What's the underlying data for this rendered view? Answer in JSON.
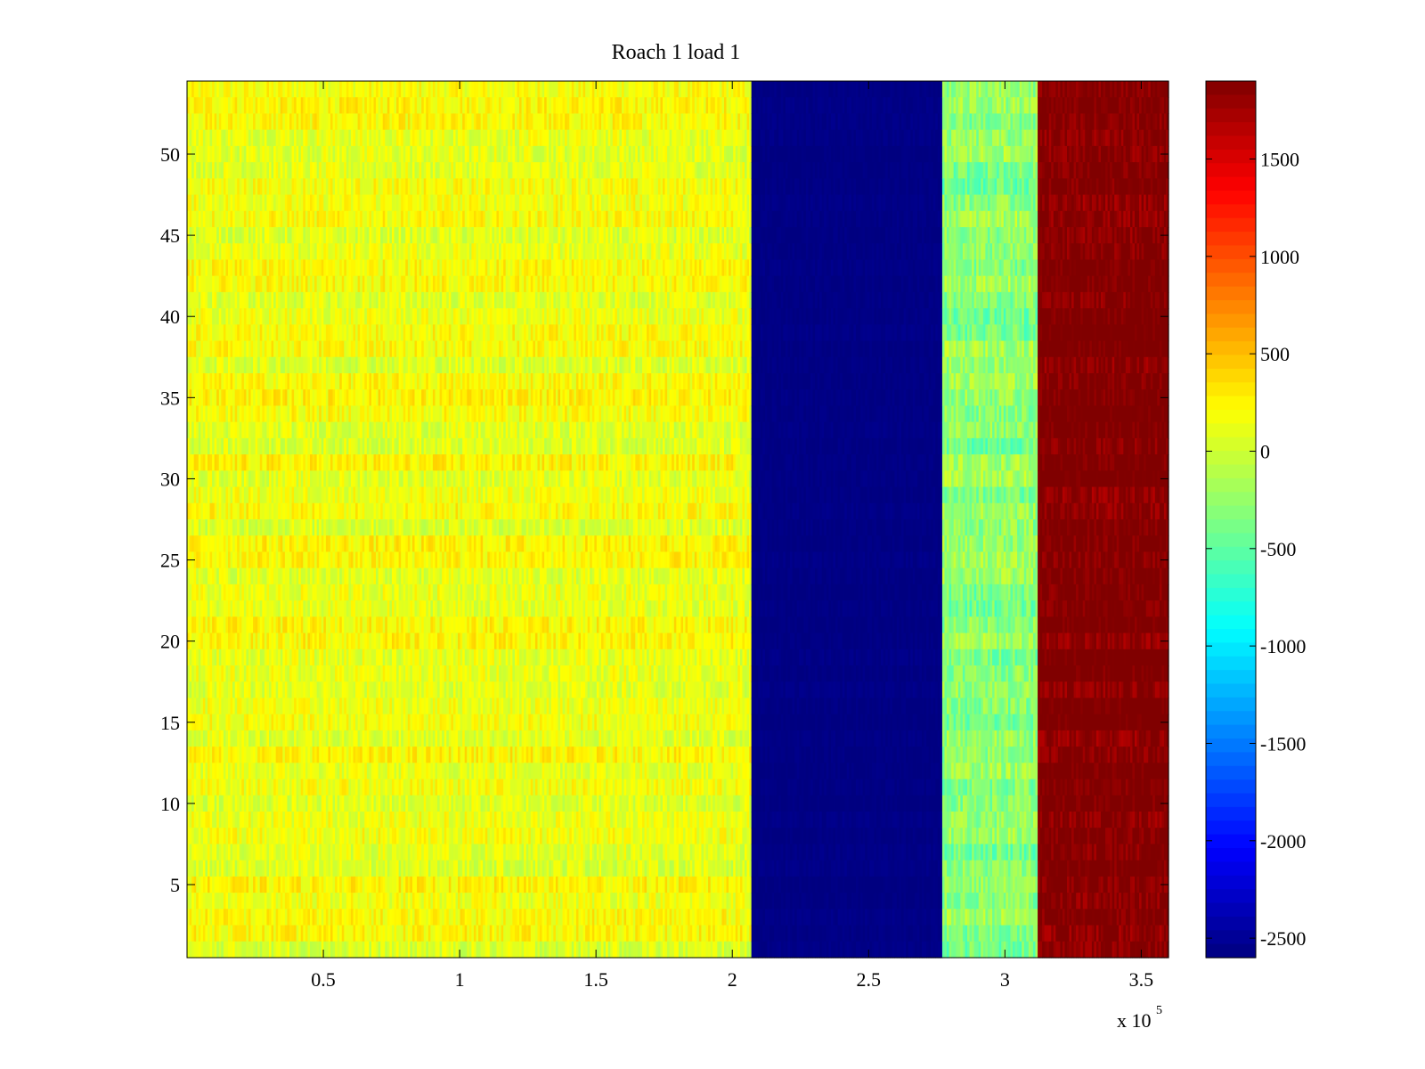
{
  "chart_data": {
    "type": "heatmap",
    "title": "Roach 1 load 1",
    "xlabel": "",
    "ylabel": "",
    "x_multiplier_label": "x 10",
    "x_multiplier_exponent": "5",
    "xlim": [
      0,
      3.6
    ],
    "ylim": [
      0.5,
      54.5
    ],
    "x_ticks": [
      {
        "value": 0.5,
        "label": "0.5"
      },
      {
        "value": 1.0,
        "label": "1"
      },
      {
        "value": 1.5,
        "label": "1.5"
      },
      {
        "value": 2.0,
        "label": "2"
      },
      {
        "value": 2.5,
        "label": "2.5"
      },
      {
        "value": 3.0,
        "label": "3"
      },
      {
        "value": 3.5,
        "label": "3.5"
      }
    ],
    "y_ticks": [
      {
        "value": 5,
        "label": "5"
      },
      {
        "value": 10,
        "label": "10"
      },
      {
        "value": 15,
        "label": "15"
      },
      {
        "value": 20,
        "label": "20"
      },
      {
        "value": 25,
        "label": "25"
      },
      {
        "value": 30,
        "label": "30"
      },
      {
        "value": 35,
        "label": "35"
      },
      {
        "value": 40,
        "label": "40"
      },
      {
        "value": 45,
        "label": "45"
      },
      {
        "value": 50,
        "label": "50"
      }
    ],
    "colormap": "jet",
    "clim": [
      -2600,
      1900
    ],
    "colorbar_ticks": [
      {
        "value": 1500,
        "label": "1500"
      },
      {
        "value": 1000,
        "label": "1000"
      },
      {
        "value": 500,
        "label": "500"
      },
      {
        "value": 0,
        "label": "0"
      },
      {
        "value": -500,
        "label": "-500"
      },
      {
        "value": -1000,
        "label": "-1000"
      },
      {
        "value": -1500,
        "label": "-1500"
      },
      {
        "value": -2000,
        "label": "-2000"
      },
      {
        "value": -2500,
        "label": "-2500"
      }
    ],
    "grid": false,
    "rows": 54,
    "regions": [
      {
        "x_start": 0.0,
        "x_end": 2.07,
        "mean_value": 150,
        "spread": 350
      },
      {
        "x_start": 2.07,
        "x_end": 2.77,
        "mean_value": -2580,
        "spread": 60
      },
      {
        "x_start": 2.77,
        "x_end": 3.12,
        "mean_value": -300,
        "spread": 450
      },
      {
        "x_start": 3.12,
        "x_end": 3.6,
        "mean_value": 1900,
        "spread": 300
      }
    ]
  }
}
